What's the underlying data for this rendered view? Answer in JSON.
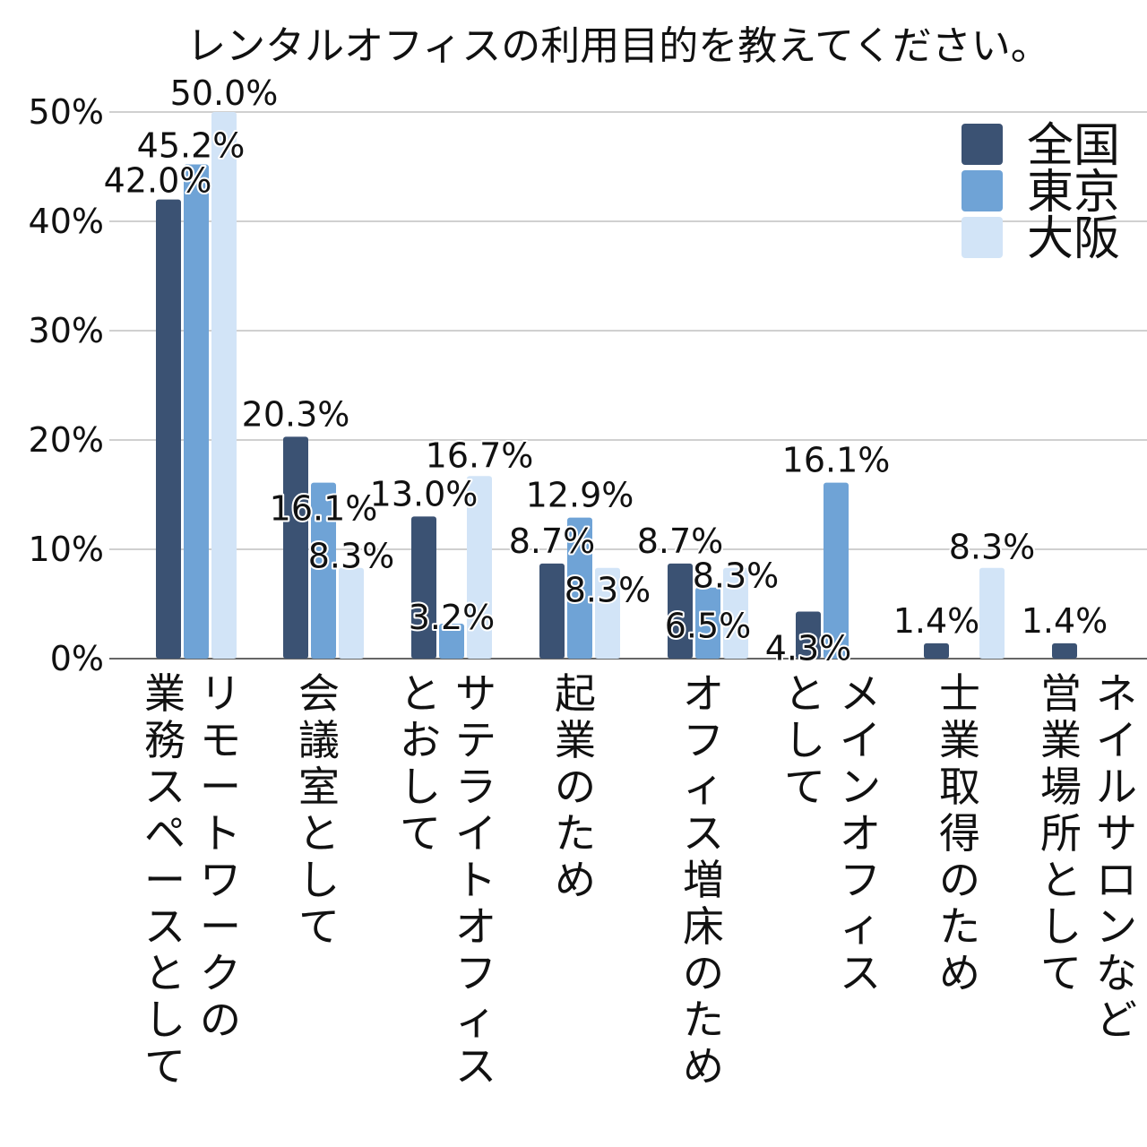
{
  "chart_data": {
    "type": "bar",
    "title": "レンタルオフィスの利用目的を教えてください。",
    "xlabel": "",
    "ylabel": "",
    "ylim": [
      0,
      50
    ],
    "yticks": [
      "0%",
      "10%",
      "20%",
      "30%",
      "40%",
      "50%"
    ],
    "grid": true,
    "legend_position": "top-right",
    "categories": [
      [
        "業務スペースとして",
        "リモートワークの"
      ],
      [
        "会議室として"
      ],
      [
        "とおして",
        "サテライトオフィス"
      ],
      [
        "起業のため"
      ],
      [
        "オフィス増床のため"
      ],
      [
        "として",
        "メインオフィス"
      ],
      [
        "士業取得のため"
      ],
      [
        "営業場所として",
        "ネイルサロンなど"
      ]
    ],
    "series": [
      {
        "name": "全国",
        "color": "#3b5273",
        "values": [
          42.0,
          20.3,
          13.0,
          8.7,
          8.7,
          4.3,
          1.4,
          1.4
        ],
        "labels": [
          "42.0%",
          "20.3%",
          "13.0%",
          "8.7%",
          "8.7%",
          "4.3%",
          "1.4%",
          "1.4%"
        ]
      },
      {
        "name": "東京",
        "color": "#6fa3d6",
        "values": [
          45.2,
          16.1,
          3.2,
          12.9,
          6.5,
          16.1,
          0,
          0
        ],
        "labels": [
          "45.2%",
          "16.1%",
          "3.2%",
          "12.9%",
          "6.5%",
          "16.1%",
          "",
          ""
        ]
      },
      {
        "name": "大阪",
        "color": "#d2e4f7",
        "values": [
          50.0,
          8.3,
          16.7,
          8.3,
          8.3,
          0,
          8.3,
          0
        ],
        "labels": [
          "50.0%",
          "8.3%",
          "16.7%",
          "8.3%",
          "8.3%",
          "",
          "8.3%",
          ""
        ]
      }
    ]
  }
}
